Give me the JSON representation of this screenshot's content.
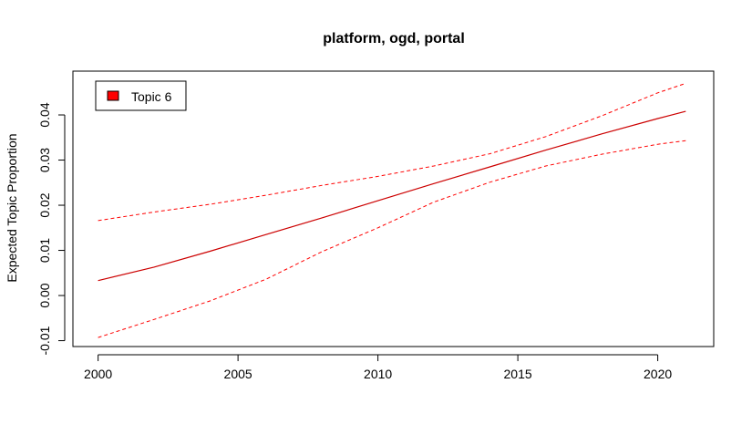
{
  "chart_data": {
    "type": "line",
    "title": "platform, ogd, portal",
    "xlabel": "",
    "ylabel": "Expected Topic Proportion",
    "xlim": [
      1999.1,
      2022.0
    ],
    "ylim": [
      -0.0113,
      0.0497
    ],
    "x_ticks": [
      2000,
      2005,
      2010,
      2015,
      2020
    ],
    "x_tick_labels": [
      "2000",
      "2005",
      "2010",
      "2015",
      "2020"
    ],
    "y_ticks": [
      -0.01,
      0.0,
      0.01,
      0.02,
      0.03,
      0.04
    ],
    "y_tick_labels": [
      "-0.01",
      "0.00",
      "0.01",
      "0.02",
      "0.03",
      "0.04"
    ],
    "legend": {
      "position": "top-left",
      "entries": [
        {
          "label": "Topic 6",
          "color": "#ff0000"
        }
      ]
    },
    "series": [
      {
        "name": "Topic 6",
        "role": "estimate",
        "color": "#cc0000",
        "style": "solid",
        "x": [
          2000,
          2002,
          2004,
          2006,
          2008,
          2010,
          2012,
          2014,
          2016,
          2018,
          2020,
          2021
        ],
        "values": [
          0.0033,
          0.0063,
          0.0098,
          0.0135,
          0.0172,
          0.021,
          0.0248,
          0.0285,
          0.0322,
          0.0358,
          0.0392,
          0.0408
        ]
      },
      {
        "role": "upper bound",
        "color": "#ff0000",
        "style": "dashed",
        "x": [
          2000,
          2002,
          2004,
          2006,
          2008,
          2010,
          2012,
          2014,
          2016,
          2018,
          2020,
          2021
        ],
        "values": [
          0.0166,
          0.0185,
          0.0202,
          0.0222,
          0.0244,
          0.0264,
          0.0287,
          0.0314,
          0.0352,
          0.0398,
          0.0449,
          0.047
        ]
      },
      {
        "role": "lower bound",
        "color": "#ff0000",
        "style": "dashed",
        "x": [
          2000,
          2002,
          2004,
          2006,
          2008,
          2010,
          2012,
          2014,
          2016,
          2018,
          2020,
          2021
        ],
        "values": [
          -0.0093,
          -0.0053,
          -0.0012,
          0.0036,
          0.0097,
          0.015,
          0.0207,
          0.0251,
          0.0287,
          0.0313,
          0.0335,
          0.0343
        ]
      }
    ]
  }
}
